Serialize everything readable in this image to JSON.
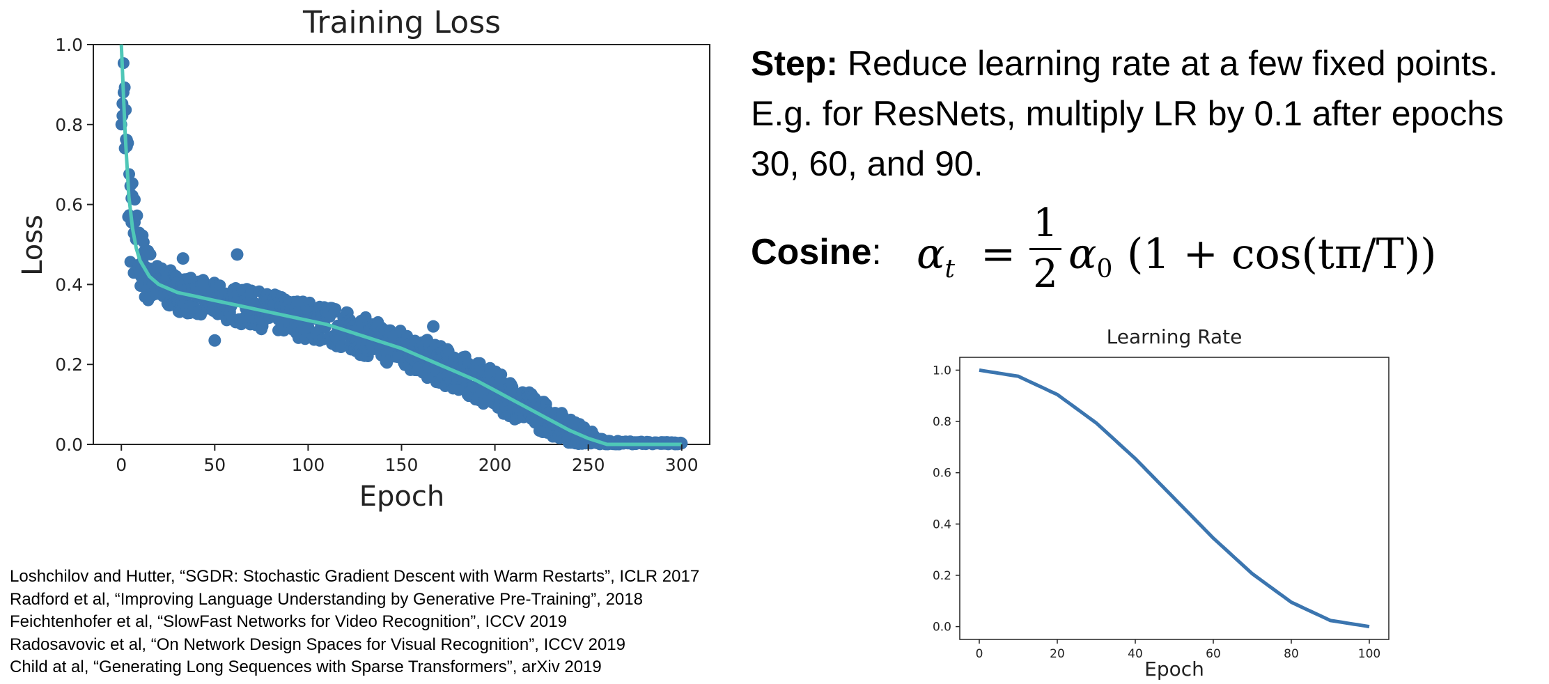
{
  "text": {
    "step_label": "Step:",
    "step_body": "Reduce learning rate at a few fixed points. E.g. for ResNets, multiply LR by 0.1 after epochs 30, 60, and 90.",
    "cosine_label": "Cosine",
    "cosine_colon": ":",
    "formula": {
      "lhs": "α",
      "lhs_sub": "t",
      "equals": "=",
      "frac_num": "1",
      "frac_den": "2",
      "alpha0": "α",
      "alpha0_sub": "0",
      "rhs": "(1 + cos(tπ/T))"
    }
  },
  "references": [
    "Loshchilov and Hutter, “SGDR: Stochastic Gradient Descent with Warm Restarts”, ICLR 2017",
    "Radford et al, “Improving Language Understanding by Generative Pre-Training”, 2018",
    "Feichtenhofer et al, “SlowFast Networks for Video Recognition”, ICCV 2019",
    "Radosavovic et al, “On Network Design Spaces for Visual Recognition”, ICCV 2019",
    "Child at al, “Generating Long Sequences with Sparse Transformers”, arXiv 2019"
  ],
  "chart_data": [
    {
      "type": "scatter",
      "title": "Training Loss",
      "xlabel": "Epoch",
      "ylabel": "Loss",
      "xlim": [
        -15,
        315
      ],
      "ylim": [
        0,
        1.0
      ],
      "xticks": [
        0,
        50,
        100,
        150,
        200,
        250,
        300
      ],
      "yticks": [
        0.0,
        0.2,
        0.4,
        0.6,
        0.8,
        1.0
      ],
      "xtick_labels": [
        "0",
        "50",
        "100",
        "150",
        "200",
        "250",
        "300"
      ],
      "ytick_labels": [
        "0.0",
        "0.2",
        "0.4",
        "0.6",
        "0.8",
        "1.0"
      ],
      "grid": false,
      "colors": {
        "points": "#3b75af",
        "line": "#4fc7b7"
      },
      "smoothed_loss": {
        "x": [
          0,
          2,
          4,
          6,
          8,
          10,
          15,
          20,
          30,
          40,
          50,
          60,
          70,
          80,
          90,
          100,
          110,
          120,
          130,
          140,
          150,
          160,
          170,
          180,
          190,
          200,
          210,
          220,
          230,
          240,
          250,
          260,
          270,
          280,
          290,
          300
        ],
        "y": [
          1.0,
          0.78,
          0.62,
          0.54,
          0.49,
          0.46,
          0.42,
          0.4,
          0.38,
          0.37,
          0.36,
          0.35,
          0.34,
          0.33,
          0.32,
          0.31,
          0.3,
          0.285,
          0.27,
          0.255,
          0.24,
          0.22,
          0.2,
          0.18,
          0.16,
          0.135,
          0.11,
          0.085,
          0.06,
          0.035,
          0.015,
          0.0,
          0.0,
          0.0,
          0.0,
          0.0
        ]
      },
      "scatter_spread": {
        "x": [
          0,
          10,
          20,
          50,
          100,
          150,
          200,
          230,
          250,
          260,
          300
        ],
        "spread": [
          0.2,
          0.09,
          0.05,
          0.045,
          0.05,
          0.05,
          0.05,
          0.04,
          0.025,
          0.01,
          0.005
        ]
      },
      "outliers": [
        {
          "x": 62,
          "y": 0.475
        },
        {
          "x": 33,
          "y": 0.465
        },
        {
          "x": 167,
          "y": 0.295
        },
        {
          "x": 50,
          "y": 0.26
        }
      ]
    },
    {
      "type": "line",
      "title": "Learning Rate",
      "xlabel": "Epoch",
      "ylabel": "",
      "xlim": [
        -5,
        105
      ],
      "ylim": [
        -0.05,
        1.05
      ],
      "xticks": [
        0,
        20,
        40,
        60,
        80,
        100
      ],
      "yticks": [
        0.0,
        0.2,
        0.4,
        0.6,
        0.8,
        1.0
      ],
      "xtick_labels": [
        "0",
        "20",
        "40",
        "60",
        "80",
        "100"
      ],
      "ytick_labels": [
        "0.0",
        "0.2",
        "0.4",
        "0.6",
        "0.8",
        "1.0"
      ],
      "grid": false,
      "colors": {
        "line": "#3b75af"
      },
      "series": [
        {
          "x": [
            0,
            10,
            20,
            30,
            40,
            50,
            60,
            70,
            80,
            90,
            100
          ],
          "values": [
            1.0,
            0.976,
            0.905,
            0.794,
            0.655,
            0.5,
            0.345,
            0.206,
            0.095,
            0.024,
            0.0
          ]
        }
      ]
    }
  ]
}
